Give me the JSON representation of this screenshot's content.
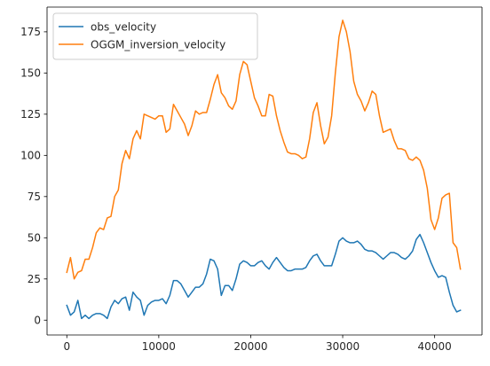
{
  "chart_data": {
    "type": "line",
    "title": "",
    "xlabel": "",
    "ylabel": "",
    "xlim": [
      -2150,
      45150
    ],
    "ylim": [
      -9,
      190
    ],
    "x_ticks": [
      0,
      10000,
      20000,
      30000,
      40000
    ],
    "y_ticks": [
      0,
      25,
      50,
      75,
      100,
      125,
      150,
      175
    ],
    "legend_position": "upper-left",
    "grid": false,
    "series": [
      {
        "name": "obs_velocity",
        "color": "#1f77b4",
        "x": [
          0,
          400,
          800,
          1200,
          1600,
          2000,
          2400,
          2800,
          3200,
          3600,
          4000,
          4400,
          4800,
          5200,
          5600,
          6000,
          6400,
          6800,
          7200,
          7600,
          8000,
          8400,
          8800,
          9200,
          9600,
          10000,
          10400,
          10800,
          11200,
          11600,
          12000,
          12400,
          12800,
          13200,
          13600,
          14000,
          14400,
          14800,
          15200,
          15600,
          16000,
          16400,
          16800,
          17200,
          17600,
          18000,
          18400,
          18800,
          19200,
          19600,
          20000,
          20400,
          20800,
          21200,
          21600,
          22000,
          22400,
          22800,
          23200,
          23600,
          24000,
          24400,
          24800,
          25200,
          25600,
          26000,
          26400,
          26800,
          27200,
          27600,
          28000,
          28400,
          28800,
          29200,
          29600,
          30000,
          30400,
          30800,
          31200,
          31600,
          32000,
          32400,
          32800,
          33200,
          33600,
          34000,
          34400,
          34800,
          35200,
          35600,
          36000,
          36400,
          36800,
          37200,
          37600,
          38000,
          38400,
          38800,
          39200,
          39600,
          40000,
          40400,
          40800,
          41200,
          41600,
          42000,
          42400,
          42800
        ],
        "y": [
          9,
          3,
          5,
          12,
          1,
          3,
          1,
          3,
          4,
          4,
          3,
          1,
          8,
          12,
          10,
          13,
          14,
          6,
          17,
          14,
          12,
          3,
          9,
          11,
          12,
          12,
          13,
          10,
          15,
          24,
          24,
          22,
          18,
          14,
          17,
          20,
          20,
          22,
          28,
          37,
          36,
          31,
          15,
          21,
          21,
          18,
          25,
          34,
          36,
          35,
          33,
          33,
          35,
          36,
          33,
          31,
          35,
          38,
          35,
          32,
          30,
          30,
          31,
          31,
          31,
          32,
          36,
          39,
          40,
          36,
          33,
          33,
          33,
          40,
          48,
          50,
          48,
          47,
          47,
          48,
          46,
          43,
          42,
          42,
          41,
          39,
          37,
          39,
          41,
          41,
          40,
          38,
          37,
          39,
          42,
          49,
          52,
          47,
          41,
          35,
          30,
          26,
          27,
          26,
          17,
          9,
          5,
          6
        ]
      },
      {
        "name": "OGGM_inversion_velocity",
        "color": "#ff7f0e",
        "x": [
          0,
          400,
          800,
          1200,
          1600,
          2000,
          2400,
          2800,
          3200,
          3600,
          4000,
          4400,
          4800,
          5200,
          5600,
          6000,
          6400,
          6800,
          7200,
          7600,
          8000,
          8400,
          8800,
          9200,
          9600,
          10000,
          10400,
          10800,
          11200,
          11600,
          12000,
          12400,
          12800,
          13200,
          13600,
          14000,
          14400,
          14800,
          15200,
          15600,
          16000,
          16400,
          16800,
          17200,
          17600,
          18000,
          18400,
          18800,
          19200,
          19600,
          20000,
          20400,
          20800,
          21200,
          21600,
          22000,
          22400,
          22800,
          23200,
          23600,
          24000,
          24400,
          24800,
          25200,
          25600,
          26000,
          26400,
          26800,
          27200,
          27600,
          28000,
          28400,
          28800,
          29200,
          29600,
          30000,
          30400,
          30800,
          31200,
          31600,
          32000,
          32400,
          32800,
          33200,
          33600,
          34000,
          34400,
          34800,
          35200,
          35600,
          36000,
          36400,
          36800,
          37200,
          37600,
          38000,
          38400,
          38800,
          39200,
          39600,
          40000,
          40400,
          40800,
          41200,
          41600,
          42000,
          42400,
          42800
        ],
        "y": [
          29,
          38,
          25,
          29,
          30,
          37,
          37,
          44,
          53,
          56,
          55,
          62,
          63,
          75,
          79,
          95,
          103,
          98,
          110,
          115,
          110,
          125,
          124,
          123,
          122,
          124,
          124,
          114,
          116,
          131,
          127,
          123,
          119,
          112,
          118,
          127,
          125,
          126,
          126,
          134,
          143,
          149,
          138,
          135,
          130,
          128,
          133,
          149,
          157,
          155,
          145,
          135,
          130,
          124,
          124,
          137,
          136,
          124,
          115,
          108,
          102,
          101,
          101,
          100,
          98,
          99,
          110,
          126,
          132,
          118,
          107,
          111,
          124,
          150,
          172,
          182,
          175,
          163,
          145,
          137,
          133,
          127,
          132,
          139,
          137,
          124,
          114,
          115,
          116,
          109,
          104,
          104,
          103,
          98,
          97,
          99,
          97,
          91,
          80,
          61,
          55,
          62,
          74,
          76,
          77,
          47,
          44,
          31
        ]
      }
    ]
  }
}
